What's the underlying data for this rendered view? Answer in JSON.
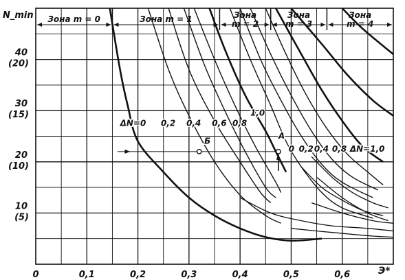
{
  "chart_data": {
    "type": "line",
    "title": "",
    "ylabel": "N_min",
    "xlabel": "Э*",
    "xlim": [
      0,
      0.7
    ],
    "ylim": [
      0,
      50
    ],
    "grid": true,
    "x_ticks": [
      {
        "value": 0,
        "label": "0"
      },
      {
        "value": 0.1,
        "label": "0,1"
      },
      {
        "value": 0.2,
        "label": "0,2"
      },
      {
        "value": 0.3,
        "label": "0,3"
      },
      {
        "value": 0.4,
        "label": "0,4"
      },
      {
        "value": 0.5,
        "label": "0,5"
      },
      {
        "value": 0.6,
        "label": "0,6"
      }
    ],
    "y_ticks": [
      {
        "value": 40,
        "label": "40",
        "sub": "(20)"
      },
      {
        "value": 30,
        "label": "30",
        "sub": "(15)"
      },
      {
        "value": 20,
        "label": "20",
        "sub": "(10)"
      },
      {
        "value": 10,
        "label": "10",
        "sub": "(5)"
      }
    ],
    "zones": [
      {
        "label": "Зона m = 0",
        "from": 0,
        "to": 0.15
      },
      {
        "label": "Зона m = 1",
        "from": 0.15,
        "to": 0.36
      },
      {
        "label": "Зона",
        "label2": "m = 2",
        "from": 0.36,
        "to": 0.46
      },
      {
        "label": "Зона",
        "label2": "m = 3",
        "from": 0.46,
        "to": 0.57
      },
      {
        "label": "Зона",
        "label2": "m = 4",
        "from": 0.57,
        "to": 0.7
      }
    ],
    "series": [
      {
        "name": "ΔN=0",
        "bold": true,
        "points": [
          [
            0.145,
            50
          ],
          [
            0.165,
            38
          ],
          [
            0.18,
            31
          ],
          [
            0.2,
            24
          ],
          [
            0.25,
            18
          ],
          [
            0.3,
            13
          ],
          [
            0.35,
            9.5
          ],
          [
            0.4,
            7
          ],
          [
            0.45,
            5.3
          ],
          [
            0.5,
            4.6
          ],
          [
            0.56,
            5
          ]
        ]
      },
      {
        "name": "0,2",
        "bold": false,
        "points": [
          [
            0.22,
            50
          ],
          [
            0.26,
            38
          ],
          [
            0.3,
            29
          ],
          [
            0.35,
            20
          ],
          [
            0.4,
            13.5
          ],
          [
            0.45,
            9.5
          ],
          [
            0.48,
            8
          ]
        ]
      },
      {
        "name": "0,4",
        "bold": false,
        "points": [
          [
            0.26,
            50
          ],
          [
            0.3,
            38
          ],
          [
            0.35,
            28
          ],
          [
            0.4,
            20
          ],
          [
            0.44,
            14
          ],
          [
            0.46,
            12
          ]
        ]
      },
      {
        "name": "0,6",
        "bold": false,
        "points": [
          [
            0.29,
            50
          ],
          [
            0.33,
            39
          ],
          [
            0.37,
            30
          ],
          [
            0.41,
            22
          ],
          [
            0.45,
            15
          ],
          [
            0.47,
            13
          ]
        ]
      },
      {
        "name": "0,8",
        "bold": false,
        "points": [
          [
            0.31,
            50
          ],
          [
            0.35,
            40
          ],
          [
            0.39,
            31
          ],
          [
            0.43,
            23
          ],
          [
            0.47,
            16
          ],
          [
            0.48,
            14
          ]
        ]
      },
      {
        "name": "1,0",
        "bold": true,
        "points": [
          [
            0.34,
            50
          ],
          [
            0.37,
            42
          ],
          [
            0.41,
            33
          ],
          [
            0.45,
            26
          ],
          [
            0.47,
            22
          ],
          [
            0.49,
            18
          ]
        ]
      },
      {
        "name": "0",
        "bold": false,
        "points": [
          [
            0.38,
            50
          ],
          [
            0.42,
            40
          ],
          [
            0.46,
            31
          ],
          [
            0.49,
            24
          ],
          [
            0.52,
            19
          ],
          [
            0.56,
            14
          ],
          [
            0.6,
            11
          ],
          [
            0.66,
            9
          ]
        ]
      },
      {
        "name": "0,2",
        "bold": false,
        "points": [
          [
            0.4,
            50
          ],
          [
            0.44,
            40
          ],
          [
            0.48,
            32
          ],
          [
            0.52,
            25
          ],
          [
            0.56,
            19.5
          ],
          [
            0.6,
            16
          ],
          [
            0.66,
            13
          ]
        ]
      },
      {
        "name": "0,4",
        "bold": false,
        "points": [
          [
            0.42,
            50
          ],
          [
            0.46,
            41
          ],
          [
            0.5,
            33
          ],
          [
            0.54,
            26
          ],
          [
            0.58,
            20.5
          ],
          [
            0.62,
            17
          ],
          [
            0.67,
            14.5
          ]
        ]
      },
      {
        "name": "0,8",
        "bold": false,
        "points": [
          [
            0.45,
            50
          ],
          [
            0.49,
            41
          ],
          [
            0.53,
            33
          ],
          [
            0.57,
            26.5
          ],
          [
            0.61,
            21.5
          ],
          [
            0.65,
            18
          ],
          [
            0.68,
            15.5
          ]
        ]
      },
      {
        "name": "ΔN=1,0",
        "bold": true,
        "points": [
          [
            0.47,
            50
          ],
          [
            0.52,
            41
          ],
          [
            0.56,
            34
          ],
          [
            0.6,
            28
          ],
          [
            0.64,
            23
          ],
          [
            0.68,
            20
          ]
        ]
      },
      {
        "name": "",
        "bold": true,
        "points": [
          [
            0.5,
            50
          ],
          [
            0.56,
            43
          ],
          [
            0.61,
            37
          ],
          [
            0.66,
            32
          ],
          [
            0.7,
            29
          ]
        ]
      },
      {
        "name": "",
        "bold": true,
        "points": [
          [
            0.6,
            50
          ],
          [
            0.64,
            46
          ],
          [
            0.7,
            41
          ]
        ]
      }
    ],
    "lower_curves": [
      {
        "points": [
          [
            0.52,
            19
          ],
          [
            0.56,
            15
          ],
          [
            0.6,
            12.5
          ],
          [
            0.64,
            10.5
          ],
          [
            0.68,
            9.5
          ]
        ]
      },
      {
        "points": [
          [
            0.54,
            21
          ],
          [
            0.58,
            17
          ],
          [
            0.62,
            14
          ],
          [
            0.66,
            12
          ],
          [
            0.69,
            11
          ]
        ]
      },
      {
        "points": [
          [
            0.55,
            17
          ],
          [
            0.6,
            13
          ],
          [
            0.65,
            10
          ],
          [
            0.69,
            8.5
          ]
        ]
      },
      {
        "points": [
          [
            0.54,
            12
          ],
          [
            0.6,
            10
          ],
          [
            0.66,
            8.5
          ],
          [
            0.7,
            8
          ]
        ]
      },
      {
        "points": [
          [
            0.4,
            13
          ],
          [
            0.46,
            10
          ],
          [
            0.52,
            8.5
          ],
          [
            0.58,
            7.5
          ],
          [
            0.65,
            7
          ],
          [
            0.7,
            6.5
          ]
        ]
      },
      {
        "points": [
          [
            0.5,
            7
          ],
          [
            0.58,
            6.2
          ],
          [
            0.66,
            5.5
          ],
          [
            0.7,
            5.3
          ]
        ]
      }
    ],
    "annotations": [
      {
        "text": "ΔN=0",
        "x": 0.165,
        "y": 27
      },
      {
        "text": "0,2",
        "x": 0.245,
        "y": 27
      },
      {
        "text": "0,4",
        "x": 0.295,
        "y": 27
      },
      {
        "text": "0,6",
        "x": 0.345,
        "y": 27
      },
      {
        "text": "0,8",
        "x": 0.385,
        "y": 27
      },
      {
        "text": "1,0",
        "x": 0.42,
        "y": 29
      },
      {
        "text": "Б",
        "x": 0.33,
        "y": 23.5
      },
      {
        "text": "A",
        "x": 0.475,
        "y": 24.5
      },
      {
        "text": "0",
        "x": 0.495,
        "y": 22
      },
      {
        "text": "0,2",
        "x": 0.515,
        "y": 22
      },
      {
        "text": "0,4",
        "x": 0.545,
        "y": 22
      },
      {
        "text": "0,8",
        "x": 0.58,
        "y": 22
      },
      {
        "text": "ΔN=1,0",
        "x": 0.615,
        "y": 22
      }
    ],
    "points": [
      {
        "name": "Б",
        "x": 0.32,
        "y": 22
      },
      {
        "name": "A",
        "x": 0.475,
        "y": 22
      }
    ],
    "arrow_line_y": 22
  }
}
